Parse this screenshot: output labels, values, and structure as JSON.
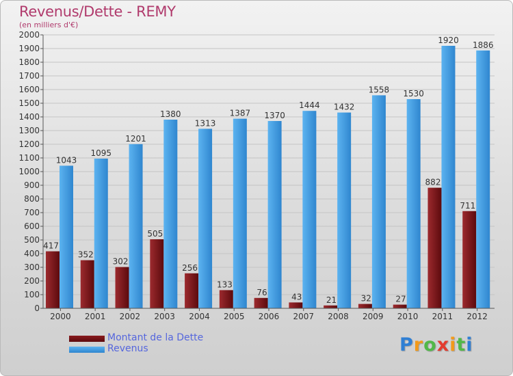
{
  "header": {
    "title": "Revenus/Dette - REMY",
    "subtitle": "(en milliers d'€)"
  },
  "chart_data": {
    "type": "bar",
    "title": "Revenus/Dette - REMY",
    "subtitle": "(en milliers d'€)",
    "xlabel": "",
    "ylabel": "",
    "ylim": [
      0,
      2000
    ],
    "yticks": [
      "0",
      "100",
      "200",
      "300",
      "400",
      "500",
      "600",
      "700",
      "800",
      "900",
      "1000",
      "1100",
      "1200",
      "1300",
      "1400",
      "1500",
      "1600",
      "1700",
      "1800",
      "1900",
      "2000"
    ],
    "grid": true,
    "legend_position": "bottom-left",
    "categories": [
      "2000",
      "2001",
      "2002",
      "2003",
      "2004",
      "2005",
      "2006",
      "2007",
      "2008",
      "2009",
      "2010",
      "2011",
      "2012"
    ],
    "series": [
      {
        "name": "Montant de la Dette",
        "color": "#7a0f14",
        "values": [
          417,
          352,
          302,
          505,
          256,
          133,
          76,
          43,
          21,
          32,
          27,
          882,
          711
        ]
      },
      {
        "name": "Revenus",
        "color": "#3e9ae0",
        "values": [
          1043,
          1095,
          1201,
          1380,
          1313,
          1387,
          1370,
          1444,
          1432,
          1558,
          1530,
          1920,
          1886
        ]
      }
    ]
  },
  "brand": {
    "letters": [
      "P",
      "r",
      "o",
      "x",
      "i",
      "t",
      "i"
    ],
    "colors": [
      "#2f7fd4",
      "#f29a1a",
      "#52b848",
      "#e33b2e",
      "#f29a1a",
      "#52b848",
      "#2f7fd4"
    ]
  }
}
